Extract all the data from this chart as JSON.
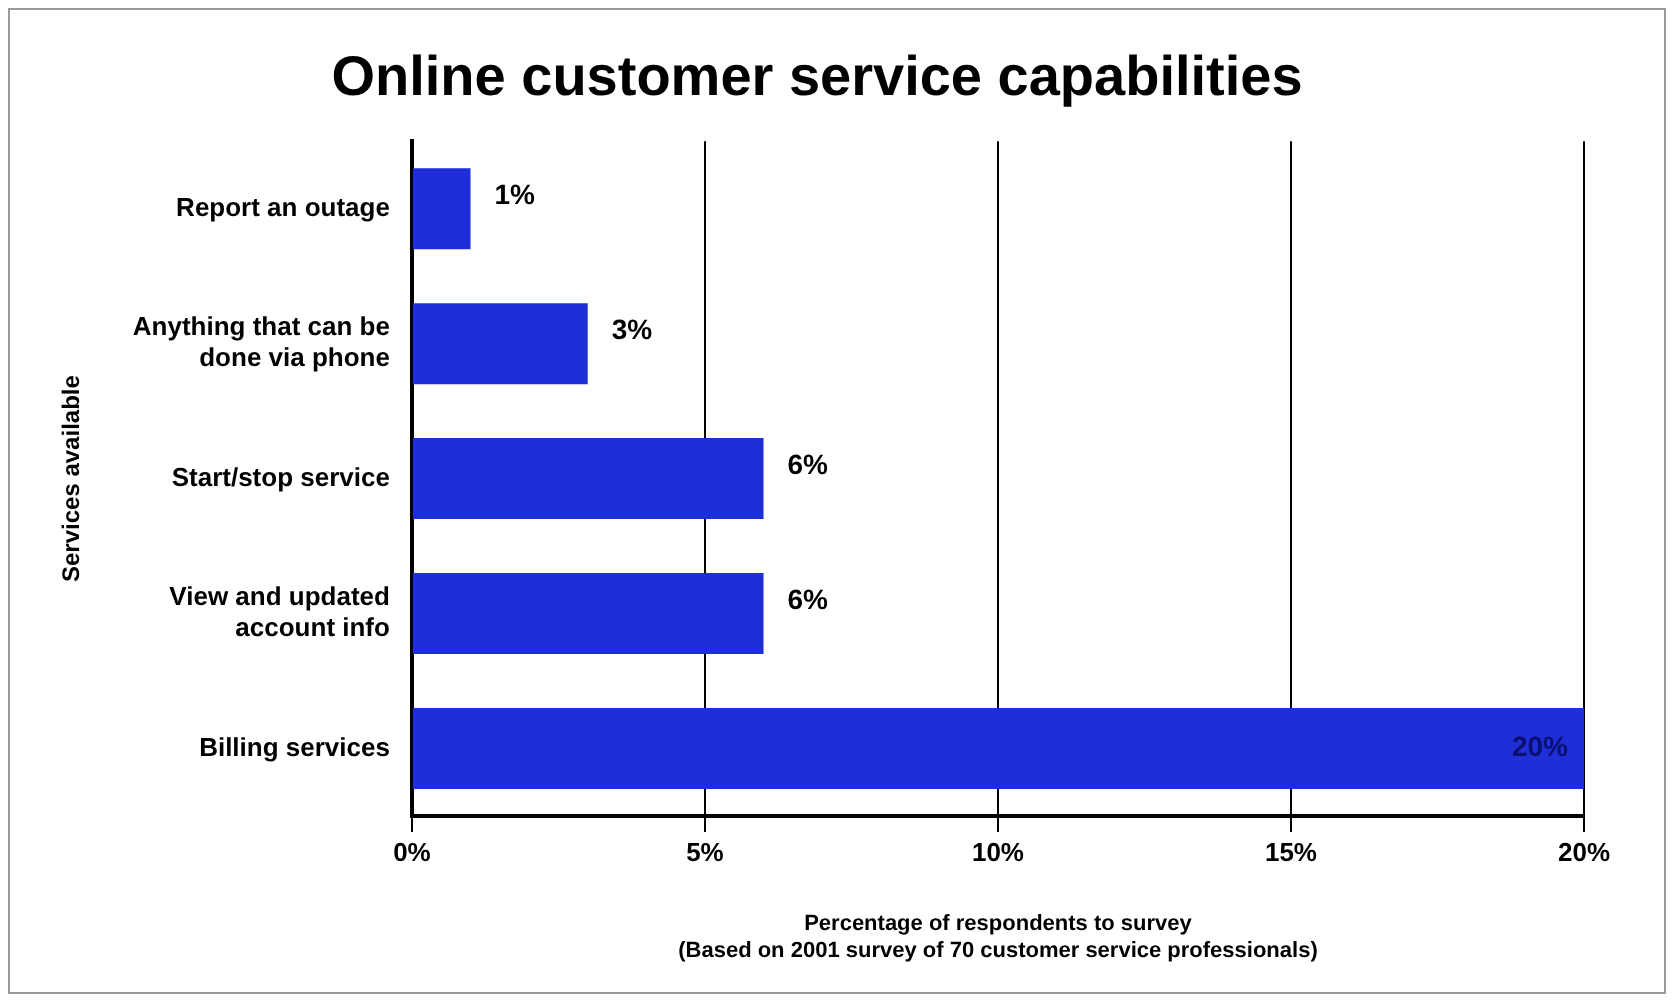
{
  "chart_data": {
    "type": "bar",
    "orientation": "horizontal",
    "title": "Online customer service capabilities",
    "ylabel": "Services available",
    "xlabel": "Percentage of respondents to survey",
    "annotations": [
      "(Based on 2001 survey of 70 customer service professionals)"
    ],
    "categories": [
      "Report an outage",
      "Anything that can be done via phone",
      "Start/stop service",
      "View and updated account info",
      "Billing services"
    ],
    "values": [
      1,
      3,
      6,
      6,
      20
    ],
    "value_labels": [
      "1%",
      "3%",
      "6%",
      "6%",
      "20%"
    ],
    "color": "#1f2fd8",
    "xlim": [
      0,
      20
    ],
    "xticks": [
      {
        "value": 0,
        "label": "0%"
      },
      {
        "value": 5,
        "label": "5%"
      },
      {
        "value": 10,
        "label": "10%"
      },
      {
        "value": 15,
        "label": "15%"
      },
      {
        "value": 20,
        "label": "20%"
      }
    ],
    "grid": "x",
    "legend": false
  }
}
